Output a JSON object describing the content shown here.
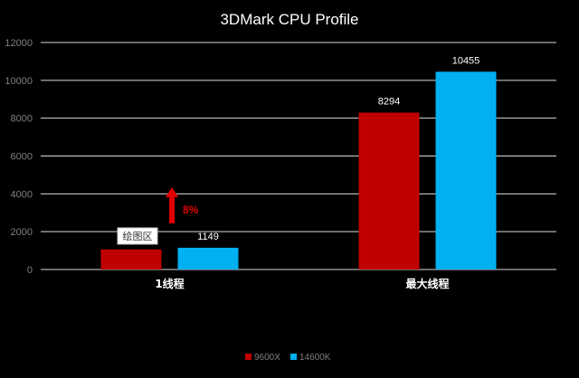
{
  "chart_data": {
    "type": "bar",
    "title": "3DMark CPU Profile",
    "categories": [
      "1线程",
      "最大线程"
    ],
    "series": [
      {
        "name": "9600X",
        "values": [
          1060,
          8294
        ],
        "color": "#c00000",
        "data_labels": [
          "",
          "8294"
        ]
      },
      {
        "name": "14600K",
        "values": [
          1149,
          10455
        ],
        "color": "#00b0f0",
        "data_labels": [
          "1149",
          "10455"
        ]
      }
    ],
    "ylim": [
      0,
      12000
    ],
    "yticks": [
      0,
      2000,
      4000,
      6000,
      8000,
      10000,
      12000
    ],
    "grid": true,
    "legend_position": "bottom-center",
    "annotation": {
      "text": "8%",
      "color": "#e00000"
    },
    "tooltip": {
      "text": "绘图区"
    }
  }
}
